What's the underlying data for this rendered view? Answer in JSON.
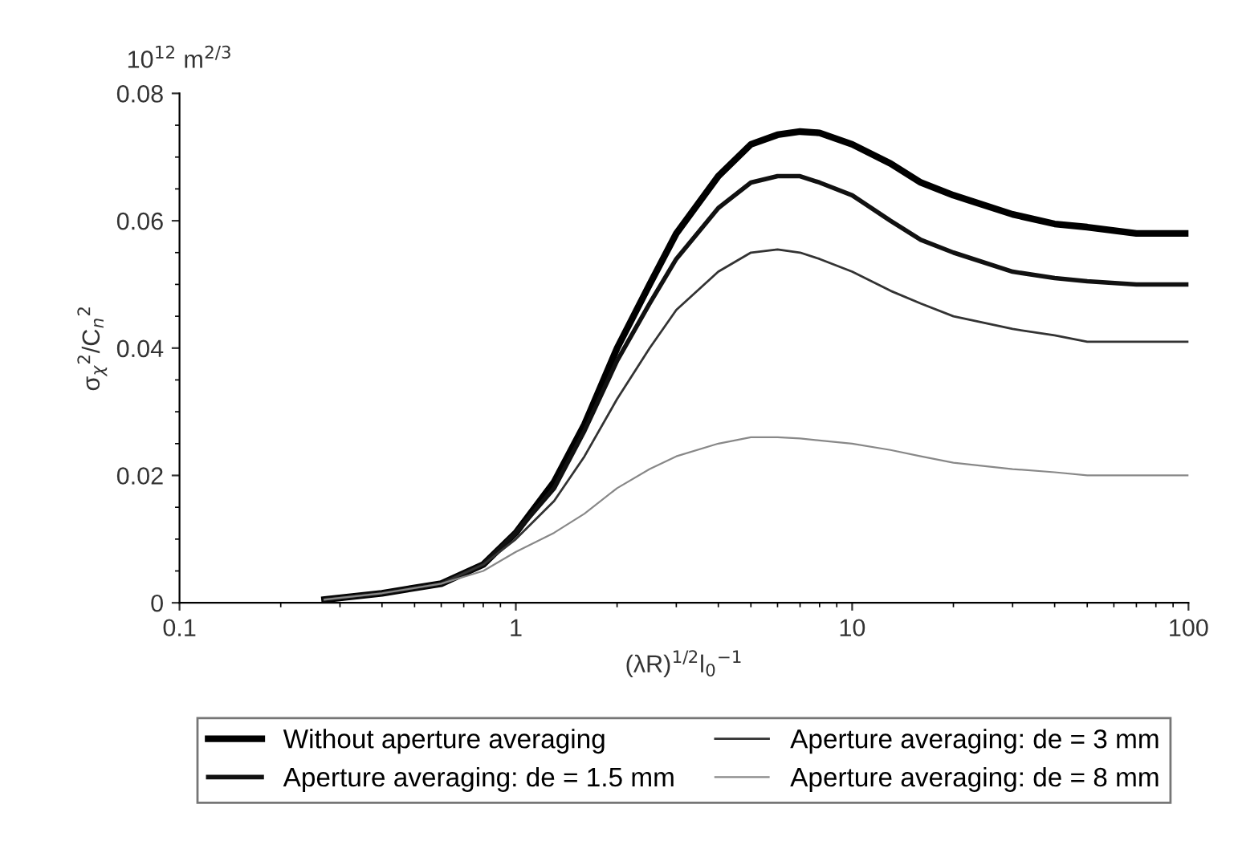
{
  "chart_data": {
    "type": "line",
    "xlabel": "(λR)$^{1/2}$l$_{0}$$^{−1}$",
    "ylabel": "σ$_{χ}$$^{2}$/C$_{n}$$^{2}$",
    "annotations": [
      "10$^{12}$ m$^{2/3}$"
    ],
    "log": "x",
    "xlim": [
      0.1,
      100
    ],
    "xticks": [
      0.1,
      1,
      10,
      100
    ],
    "ylim": [
      0,
      0.08
    ],
    "yticks": [
      0,
      0.02,
      0.04,
      0.06,
      0.08
    ],
    "grid": false,
    "legend": "bottom",
    "line_style": "solid",
    "marker": "none",
    "x": [
      0.27,
      0.4,
      0.6,
      0.8,
      1,
      1.3,
      1.6,
      2,
      2.5,
      3,
      4,
      5,
      6,
      7,
      8,
      10,
      13,
      16,
      20,
      30,
      40,
      50,
      70,
      100
    ],
    "series": [
      {
        "name": "Without aperture averaging",
        "color": "#000000",
        "values": [
          0.0005,
          0.0015,
          0.003,
          0.006,
          0.011,
          0.019,
          0.028,
          0.04,
          0.05,
          0.058,
          0.067,
          0.072,
          0.0735,
          0.074,
          0.0738,
          0.072,
          0.069,
          0.066,
          0.064,
          0.061,
          0.0595,
          0.059,
          0.058,
          0.058
        ]
      },
      {
        "name": "Aperture averaging: de = 1.5 mm",
        "color": "#111111",
        "values": [
          0.0005,
          0.0015,
          0.003,
          0.006,
          0.011,
          0.018,
          0.027,
          0.038,
          0.047,
          0.054,
          0.062,
          0.066,
          0.067,
          0.067,
          0.066,
          0.064,
          0.06,
          0.057,
          0.055,
          0.052,
          0.051,
          0.0505,
          0.05,
          0.05
        ]
      },
      {
        "name": "Aperture averaging: de = 3 mm",
        "color": "#333333",
        "values": [
          0.0005,
          0.0015,
          0.003,
          0.006,
          0.01,
          0.016,
          0.023,
          0.032,
          0.04,
          0.046,
          0.052,
          0.055,
          0.0555,
          0.055,
          0.054,
          0.052,
          0.049,
          0.047,
          0.045,
          0.043,
          0.042,
          0.041,
          0.041,
          0.041
        ]
      },
      {
        "name": "Aperture averaging: de = 8 mm",
        "color": "#888888",
        "values": [
          0.0005,
          0.0015,
          0.003,
          0.005,
          0.008,
          0.011,
          0.014,
          0.018,
          0.021,
          0.023,
          0.025,
          0.026,
          0.026,
          0.0258,
          0.0255,
          0.025,
          0.024,
          0.023,
          0.022,
          0.021,
          0.0205,
          0.02,
          0.02,
          0.02
        ]
      }
    ]
  }
}
